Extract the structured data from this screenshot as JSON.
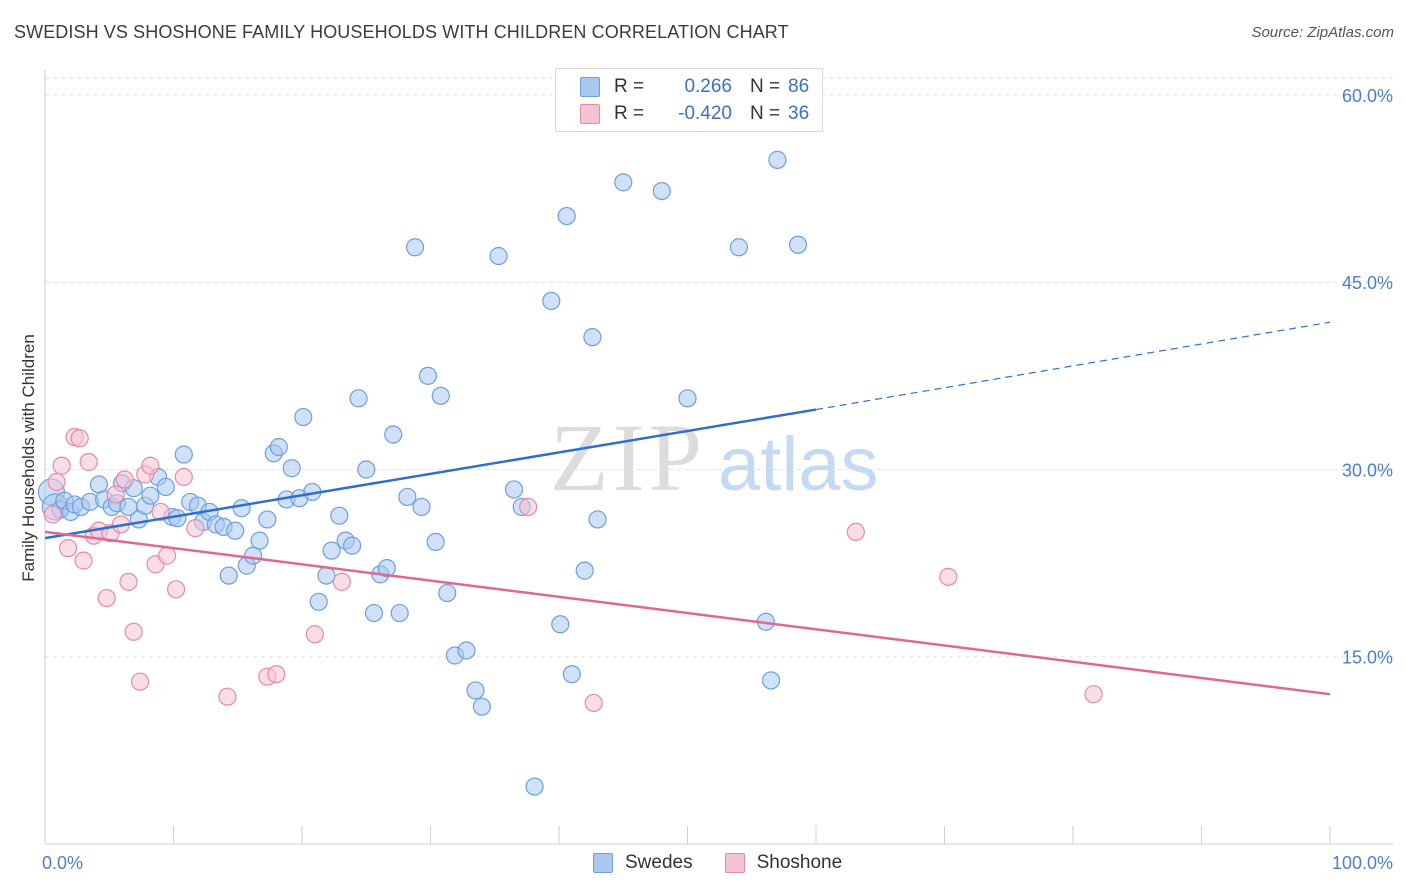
{
  "title": "SWEDISH VS SHOSHONE FAMILY HOUSEHOLDS WITH CHILDREN CORRELATION CHART",
  "source": "Source: ZipAtlas.com",
  "watermark": {
    "zip": "ZIP",
    "atlas": "atlas"
  },
  "legend": {
    "rows": [
      {
        "r_label": "R =",
        "r_value": "0.266",
        "n_label": "N =",
        "n_value": "86",
        "color": "#a9c8f0",
        "border": "#6b9fe0"
      },
      {
        "r_label": "R =",
        "r_value": "-0.420",
        "n_label": "N =",
        "n_value": "36",
        "color": "#f6c3d3",
        "border": "#e48aa9"
      }
    ]
  },
  "bottom_legend": [
    {
      "label": "Swedes",
      "color": "#a9c8f0",
      "border": "#6b9fe0"
    },
    {
      "label": "Shoshone",
      "color": "#f6c3d3",
      "border": "#e48aa9"
    }
  ],
  "chart_data": {
    "type": "scatter",
    "title": "SWEDISH VS SHOSHONE FAMILY HOUSEHOLDS WITH CHILDREN CORRELATION CHART",
    "xlabel": "",
    "ylabel": "Family Households with Children",
    "xlim": [
      0,
      100
    ],
    "ylim": [
      0,
      62
    ],
    "x_tick_labels": [
      "0.0%",
      "100.0%"
    ],
    "y_ticks": [
      15,
      30,
      45,
      60
    ],
    "y_tick_labels": [
      "15.0%",
      "30.0%",
      "45.0%",
      "60.0%"
    ],
    "grid": "horizontal dashed",
    "series": [
      {
        "name": "Swedes",
        "color": "#6b9fe0",
        "fill": "#a9c8f0",
        "trend": {
          "x0": 0,
          "y0": 24.5,
          "x1": 60,
          "y1": 34.8,
          "dashed_to_x": 100,
          "dashed_to_y": 41.8,
          "color": "#2f6fd0"
        },
        "points": [
          [
            0.5,
            28.2
          ],
          [
            0.8,
            27.0
          ],
          [
            1.2,
            26.8
          ],
          [
            1.5,
            27.5
          ],
          [
            2.0,
            26.6
          ],
          [
            2.3,
            27.2
          ],
          [
            2.8,
            27.0
          ],
          [
            3.5,
            27.4
          ],
          [
            4.2,
            28.8
          ],
          [
            4.6,
            27.6
          ],
          [
            5.2,
            27.0
          ],
          [
            5.6,
            27.3
          ],
          [
            6.0,
            28.9
          ],
          [
            6.5,
            27.0
          ],
          [
            6.9,
            28.5
          ],
          [
            7.3,
            26.0
          ],
          [
            7.8,
            27.1
          ],
          [
            8.2,
            27.9
          ],
          [
            8.8,
            29.4
          ],
          [
            9.4,
            28.6
          ],
          [
            9.9,
            26.2
          ],
          [
            10.3,
            26.1
          ],
          [
            10.8,
            31.2
          ],
          [
            11.3,
            27.4
          ],
          [
            11.9,
            27.1
          ],
          [
            12.3,
            25.8
          ],
          [
            12.8,
            26.6
          ],
          [
            13.3,
            25.6
          ],
          [
            13.9,
            25.4
          ],
          [
            14.3,
            21.5
          ],
          [
            14.8,
            25.1
          ],
          [
            15.3,
            26.9
          ],
          [
            15.7,
            22.3
          ],
          [
            16.2,
            23.1
          ],
          [
            16.7,
            24.3
          ],
          [
            17.3,
            26.0
          ],
          [
            17.8,
            31.3
          ],
          [
            18.2,
            31.8
          ],
          [
            18.8,
            27.6
          ],
          [
            19.2,
            30.1
          ],
          [
            19.8,
            27.7
          ],
          [
            20.1,
            34.2
          ],
          [
            20.8,
            28.2
          ],
          [
            21.3,
            19.4
          ],
          [
            21.9,
            21.5
          ],
          [
            22.3,
            23.5
          ],
          [
            22.9,
            26.3
          ],
          [
            23.4,
            24.3
          ],
          [
            23.9,
            23.9
          ],
          [
            24.4,
            35.7
          ],
          [
            25.0,
            30.0
          ],
          [
            25.6,
            18.5
          ],
          [
            26.1,
            21.6
          ],
          [
            26.6,
            22.1
          ],
          [
            27.1,
            32.8
          ],
          [
            27.6,
            18.5
          ],
          [
            28.2,
            27.8
          ],
          [
            28.8,
            47.8
          ],
          [
            29.3,
            27.0
          ],
          [
            29.8,
            37.5
          ],
          [
            30.4,
            24.2
          ],
          [
            30.8,
            35.9
          ],
          [
            31.3,
            20.1
          ],
          [
            31.9,
            15.1
          ],
          [
            32.8,
            15.5
          ],
          [
            33.5,
            12.3
          ],
          [
            34.0,
            11.0
          ],
          [
            35.3,
            47.1
          ],
          [
            36.5,
            28.4
          ],
          [
            37.1,
            27.0
          ],
          [
            38.1,
            4.6
          ],
          [
            39.4,
            43.5
          ],
          [
            40.1,
            17.6
          ],
          [
            40.6,
            50.3
          ],
          [
            41.0,
            13.6
          ],
          [
            42.0,
            21.9
          ],
          [
            42.6,
            40.6
          ],
          [
            43.0,
            26.0
          ],
          [
            45.0,
            53.0
          ],
          [
            48.0,
            52.3
          ],
          [
            50.0,
            35.7
          ],
          [
            54.0,
            47.8
          ],
          [
            56.1,
            17.8
          ],
          [
            56.5,
            13.1
          ],
          [
            57.0,
            54.8
          ],
          [
            58.6,
            48.0
          ]
        ]
      },
      {
        "name": "Shoshone",
        "color": "#e48aa9",
        "fill": "#f6c3d3",
        "trend": {
          "x0": 0,
          "y0": 25.0,
          "x1": 100,
          "y1": 12.0,
          "color": "#e0678f"
        },
        "points": [
          [
            0.6,
            26.4
          ],
          [
            0.9,
            29.0
          ],
          [
            1.3,
            30.3
          ],
          [
            1.8,
            23.7
          ],
          [
            2.3,
            32.6
          ],
          [
            2.7,
            32.5
          ],
          [
            3.0,
            22.7
          ],
          [
            3.4,
            30.6
          ],
          [
            3.8,
            24.7
          ],
          [
            4.2,
            25.1
          ],
          [
            4.8,
            19.7
          ],
          [
            5.1,
            24.9
          ],
          [
            5.5,
            28.0
          ],
          [
            5.9,
            25.6
          ],
          [
            6.2,
            29.2
          ],
          [
            6.5,
            21.0
          ],
          [
            6.9,
            17.0
          ],
          [
            7.4,
            13.0
          ],
          [
            7.8,
            29.6
          ],
          [
            8.2,
            30.3
          ],
          [
            8.6,
            22.4
          ],
          [
            9.0,
            26.6
          ],
          [
            9.5,
            23.1
          ],
          [
            10.2,
            20.4
          ],
          [
            10.8,
            29.4
          ],
          [
            11.7,
            25.3
          ],
          [
            14.2,
            11.8
          ],
          [
            17.3,
            13.4
          ],
          [
            18.0,
            13.6
          ],
          [
            21.0,
            16.8
          ],
          [
            23.1,
            21.0
          ],
          [
            37.6,
            27.0
          ],
          [
            42.7,
            11.3
          ],
          [
            63.1,
            25.0
          ],
          [
            70.3,
            21.4
          ],
          [
            81.6,
            12.0
          ]
        ]
      }
    ]
  }
}
